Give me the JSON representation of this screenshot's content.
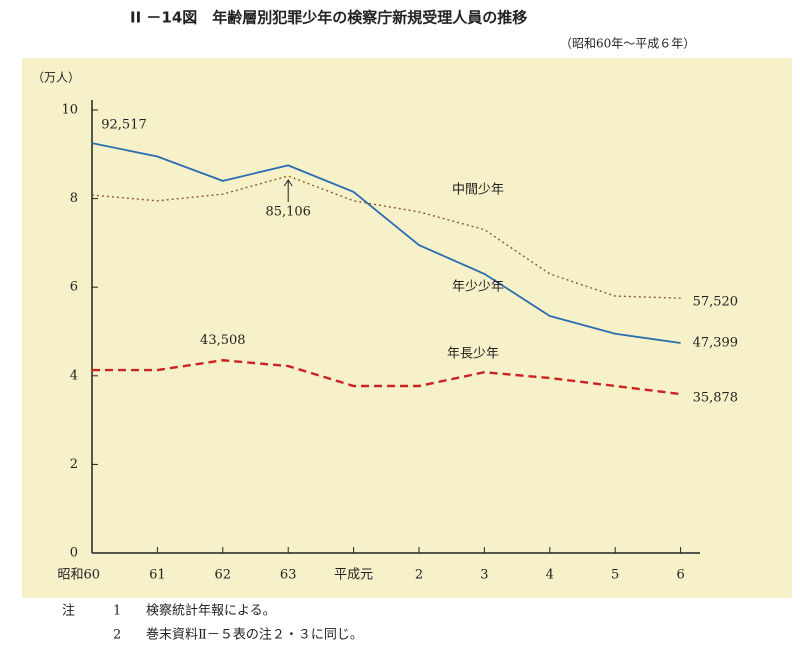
{
  "chart_data": {
    "type": "line",
    "title": "II －14図　年齢層別犯罪少年の検察庁新規受理人員の推移",
    "subtitle": "（昭和60年～平成６年）",
    "y_label": "（万人）",
    "categories": [
      "昭和60",
      "61",
      "62",
      "63",
      "平成元",
      "2",
      "3",
      "4",
      "5",
      "6"
    ],
    "ylim": [
      0,
      10
    ],
    "yticks": [
      0,
      2,
      4,
      6,
      8,
      10
    ],
    "grid": false,
    "series": [
      {
        "name": "年少少年",
        "color": "#2a6db0",
        "style": "solid",
        "values": [
          9.2517,
          8.95,
          8.4,
          8.75,
          8.15,
          6.95,
          6.3,
          5.35,
          4.95,
          4.7399
        ],
        "value_labels": [
          "92,517",
          null,
          null,
          null,
          null,
          null,
          null,
          null,
          null,
          "47,399"
        ]
      },
      {
        "name": "中間少年",
        "color": "#8a5a2a",
        "style": "dotted",
        "values": [
          8.08,
          7.95,
          8.1,
          8.5106,
          7.95,
          7.7,
          7.3,
          6.3,
          5.8,
          5.752
        ],
        "value_labels": [
          null,
          null,
          null,
          "85,106",
          null,
          null,
          null,
          null,
          null,
          "57,520"
        ]
      },
      {
        "name": "年長少年",
        "color": "#cc2222",
        "style": "dashed",
        "values": [
          4.13,
          4.13,
          4.3508,
          4.22,
          3.77,
          3.77,
          4.08,
          3.95,
          3.77,
          3.5878
        ],
        "value_labels": [
          null,
          null,
          "43,508",
          null,
          null,
          null,
          null,
          null,
          null,
          "35,878"
        ]
      }
    ]
  },
  "notes": {
    "label": "注",
    "items": [
      {
        "number": "1",
        "text": "検察統計年報による。"
      },
      {
        "number": "2",
        "text": "巻末資料Ⅱ－５表の注２・３に同じ。"
      }
    ]
  }
}
